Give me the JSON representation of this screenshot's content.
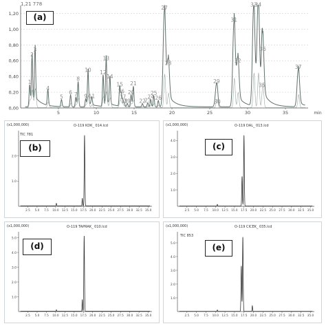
{
  "chart_data": [
    {
      "panel": "(a)",
      "type": "line",
      "xlabel": "min",
      "ylabel": "",
      "xlim": [
        0,
        38
      ],
      "ylim": [
        0,
        1.3
      ],
      "yticks": [
        "0,00",
        "0,20",
        "0,40",
        "0,60",
        "0,80",
        "1,00",
        "1,20"
      ],
      "xticks": [
        "5",
        "10",
        "15",
        "20",
        "25",
        "30",
        "35"
      ],
      "xtick_values": [
        5,
        10,
        15,
        20,
        25,
        30,
        35
      ],
      "ytick_values": [
        0,
        0.2,
        0.4,
        0.6,
        0.8,
        1.0,
        1.2
      ],
      "header_text": "1,21 778",
      "peaks": [
        {
          "label": "1",
          "x": 1.2,
          "y": 0.28
        },
        {
          "label": "2",
          "x": 1.5,
          "y": 0.63
        },
        {
          "label": "3",
          "x": 1.9,
          "y": 0.69
        },
        {
          "label": "4",
          "x": 3.6,
          "y": 0.2
        },
        {
          "label": "5",
          "x": 5.4,
          "y": 0.09
        },
        {
          "label": "6",
          "x": 6.6,
          "y": 0.15
        },
        {
          "label": "7",
          "x": 7.3,
          "y": 0.12
        },
        {
          "label": "8",
          "x": 7.6,
          "y": 0.32
        },
        {
          "label": "9",
          "x": 8.6,
          "y": 0.1
        },
        {
          "label": "10",
          "x": 8.9,
          "y": 0.43
        },
        {
          "label": "11",
          "x": 9.4,
          "y": 0.1
        },
        {
          "label": "12",
          "x": 10.9,
          "y": 0.4
        },
        {
          "label": "13",
          "x": 11.3,
          "y": 0.58
        },
        {
          "label": "14",
          "x": 11.8,
          "y": 0.35
        },
        {
          "label": "15",
          "x": 13.1,
          "y": 0.25
        },
        {
          "label": "16",
          "x": 13.3,
          "y": 0.16
        },
        {
          "label": "17",
          "x": 13.5,
          "y": 0.09
        },
        {
          "label": "18",
          "x": 13.7,
          "y": 0.04
        },
        {
          "label": "19",
          "x": 14.1,
          "y": 0.04
        },
        {
          "label": "20",
          "x": 14.6,
          "y": 0.15
        },
        {
          "label": "21",
          "x": 14.9,
          "y": 0.26
        },
        {
          "label": "22",
          "x": 16.1,
          "y": 0.04
        },
        {
          "label": "23",
          "x": 16.8,
          "y": 0.05
        },
        {
          "label": "24",
          "x": 17.2,
          "y": 0.09
        },
        {
          "label": "25",
          "x": 17.6,
          "y": 0.14
        },
        {
          "label": "26",
          "x": 18.2,
          "y": 0.08
        },
        {
          "label": "27",
          "x": 19.0,
          "y": 1.22
        },
        {
          "label": "28",
          "x": 19.5,
          "y": 0.52
        },
        {
          "label": "29",
          "x": 25.9,
          "y": 0.29
        },
        {
          "label": "30",
          "x": 26.0,
          "y": 0.03
        },
        {
          "label": "31",
          "x": 28.2,
          "y": 1.07
        },
        {
          "label": "32",
          "x": 28.7,
          "y": 0.55
        },
        {
          "label": "33",
          "x": 30.8,
          "y": 1.26
        },
        {
          "label": "34",
          "x": 31.4,
          "y": 1.26
        },
        {
          "label": "35",
          "x": 31.9,
          "y": 0.24
        },
        {
          "label": "36",
          "x": 32.0,
          "y": 0.7
        },
        {
          "label": "37",
          "x": 36.7,
          "y": 0.47
        }
      ]
    },
    {
      "panel": "(b)",
      "type": "line",
      "corner_label": "(x1,000,000)",
      "title": "O-119 KDK_ 014.lcd",
      "series_label": "TIC 781",
      "xlim": [
        0,
        36
      ],
      "ylim": [
        0,
        3.0
      ],
      "yticks": [
        "1.0",
        "2.0"
      ],
      "ytick_values": [
        1.0,
        2.0
      ],
      "xticks": [
        "2.5",
        "5.0",
        "7.5",
        "10.0",
        "12.5",
        "15.0",
        "17.5",
        "20.0",
        "22.5",
        "25.0",
        "27.5",
        "30.0",
        "32.5",
        "35.0"
      ],
      "peaks": [
        {
          "x": 10.2,
          "y": 0.1
        },
        {
          "x": 17.2,
          "y": 0.3
        },
        {
          "x": 17.8,
          "y": 2.8
        }
      ]
    },
    {
      "panel": "(c)",
      "type": "line",
      "corner_label": "(x1,000,000)",
      "title": "O-119 DAL_ 013.lcd",
      "xlim": [
        0,
        36
      ],
      "ylim": [
        0,
        4.6
      ],
      "yticks": [
        "1.0",
        "2.0",
        "3.0",
        "4.0"
      ],
      "ytick_values": [
        1.0,
        2.0,
        3.0,
        4.0
      ],
      "xticks": [
        "2.5",
        "5.0",
        "7.5",
        "10.0",
        "12.5",
        "15.0",
        "17.5",
        "20.0",
        "22.5",
        "25.0",
        "27.5",
        "30.0",
        "32.5",
        "35.0"
      ],
      "peaks": [
        {
          "x": 10.5,
          "y": 0.1
        },
        {
          "x": 17.0,
          "y": 1.8
        },
        {
          "x": 17.5,
          "y": 4.3
        }
      ]
    },
    {
      "panel": "(d)",
      "type": "line",
      "corner_label": "(x1,000,000)",
      "title": "O-119 TAPRAK_ 010.lcd",
      "xlim": [
        0,
        36
      ],
      "ylim": [
        0,
        5.4
      ],
      "yticks": [
        "1.0",
        "2.0",
        "3.0",
        "4.0",
        "5.0"
      ],
      "ytick_values": [
        1.0,
        2.0,
        3.0,
        4.0,
        5.0
      ],
      "xticks": [
        "2.5",
        "5.0",
        "7.5",
        "10.0",
        "12.5",
        "15.0",
        "17.5",
        "20.0",
        "22.5",
        "25.0",
        "27.5",
        "30.0",
        "32.5",
        "35.0"
      ],
      "peaks": [
        {
          "x": 10.2,
          "y": 0.1
        },
        {
          "x": 17.2,
          "y": 0.8
        },
        {
          "x": 17.7,
          "y": 5.1
        }
      ]
    },
    {
      "panel": "(e)",
      "type": "line",
      "corner_label": "(x1,000,000)",
      "title": "O-119 CICEK_ 035.lcd",
      "series_label": "TIC 853",
      "xlim": [
        0,
        36
      ],
      "ylim": [
        0,
        5.8
      ],
      "yticks": [
        "1.0",
        "2.0",
        "3.0",
        "4.0",
        "5.0"
      ],
      "ytick_values": [
        1.0,
        2.0,
        3.0,
        4.0,
        5.0
      ],
      "xticks": [
        "2.5",
        "5.0",
        "7.5",
        "10.0",
        "12.5",
        "15.0",
        "17.5",
        "20.0",
        "22.5",
        "25.0",
        "27.5",
        "30.0",
        "32.5",
        "35.0"
      ],
      "peaks": [
        {
          "x": 10.5,
          "y": 0.1
        },
        {
          "x": 16.8,
          "y": 3.3
        },
        {
          "x": 17.2,
          "y": 5.4
        },
        {
          "x": 19.7,
          "y": 0.4
        }
      ]
    }
  ],
  "colors": {
    "trace_a": "#5f6f6a",
    "trace": "#333333",
    "grid": "#c8c8c8",
    "axis": "#555555",
    "label_gray": "#8a8a8a"
  }
}
